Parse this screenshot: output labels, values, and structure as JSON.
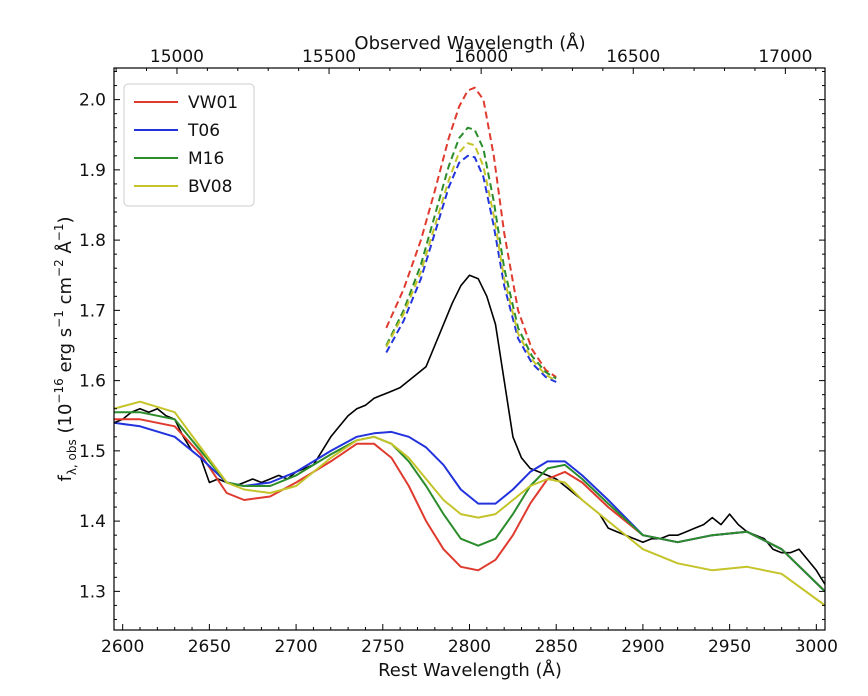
{
  "chart_data": {
    "type": "line",
    "title": "",
    "xlabel": "Rest Wavelength (Å)",
    "ylabel": "f_λ, obs (10^-16 erg s^-1 cm^-2 Å^-1)",
    "ylabel_parts": {
      "f": "f",
      "f_sub": "λ, obs",
      "open": " (10",
      "exp1": "−16",
      "erg": " erg s",
      "exp2": "−1",
      "cm": " cm",
      "exp3": "−2",
      "ang": " Å",
      "exp4": "−1",
      "close": ")"
    },
    "xlim": [
      2595,
      3005
    ],
    "ylim": [
      1.245,
      2.045
    ],
    "x_ticks": [
      2600,
      2650,
      2700,
      2750,
      2800,
      2850,
      2900,
      2950,
      3000
    ],
    "y_ticks": [
      1.3,
      1.4,
      1.5,
      1.6,
      1.7,
      1.8,
      1.9,
      2.0
    ],
    "top_axis": {
      "label": "Observed Wavelength (Å)",
      "ticks": [
        15000,
        15500,
        16000,
        16500,
        17000
      ],
      "redshift_factor": 5.7006
    },
    "legend_position": "upper-left",
    "colors": {
      "VW01": "#e03a2e",
      "T06": "#2233dd",
      "M16": "#2b8c2b",
      "BV08": "#c4c42a",
      "data": "#000000"
    },
    "series": [
      {
        "name": "VW01",
        "style": "solid",
        "x": [
          2595,
          2610,
          2630,
          2645,
          2660,
          2670,
          2685,
          2700,
          2720,
          2735,
          2745,
          2755,
          2765,
          2775,
          2785,
          2795,
          2805,
          2815,
          2825,
          2835,
          2845,
          2855,
          2865,
          2880,
          2900,
          2920,
          2940,
          2960,
          2980,
          3005
        ],
        "y": [
          1.545,
          1.545,
          1.535,
          1.495,
          1.44,
          1.43,
          1.435,
          1.455,
          1.485,
          1.51,
          1.51,
          1.49,
          1.45,
          1.4,
          1.36,
          1.335,
          1.33,
          1.345,
          1.38,
          1.425,
          1.46,
          1.47,
          1.455,
          1.42,
          1.38,
          1.37,
          1.38,
          1.385,
          1.36,
          1.3
        ]
      },
      {
        "name": "T06",
        "style": "solid",
        "x": [
          2595,
          2610,
          2630,
          2645,
          2660,
          2670,
          2685,
          2700,
          2720,
          2735,
          2745,
          2755,
          2765,
          2775,
          2785,
          2795,
          2805,
          2815,
          2825,
          2835,
          2845,
          2855,
          2865,
          2880,
          2900,
          2920,
          2940,
          2960,
          2980,
          3005
        ],
        "y": [
          1.54,
          1.535,
          1.52,
          1.49,
          1.455,
          1.45,
          1.455,
          1.47,
          1.5,
          1.52,
          1.525,
          1.527,
          1.52,
          1.505,
          1.48,
          1.445,
          1.425,
          1.425,
          1.445,
          1.47,
          1.485,
          1.485,
          1.465,
          1.43,
          1.38,
          1.37,
          1.38,
          1.385,
          1.36,
          1.3
        ]
      },
      {
        "name": "M16",
        "style": "solid",
        "x": [
          2595,
          2610,
          2630,
          2645,
          2660,
          2670,
          2685,
          2700,
          2720,
          2735,
          2745,
          2755,
          2765,
          2775,
          2785,
          2795,
          2805,
          2815,
          2825,
          2835,
          2845,
          2855,
          2865,
          2880,
          2900,
          2920,
          2940,
          2960,
          2980,
          3005
        ],
        "y": [
          1.555,
          1.555,
          1.545,
          1.5,
          1.455,
          1.45,
          1.45,
          1.465,
          1.495,
          1.515,
          1.52,
          1.51,
          1.485,
          1.45,
          1.41,
          1.375,
          1.365,
          1.375,
          1.41,
          1.45,
          1.475,
          1.48,
          1.46,
          1.425,
          1.38,
          1.37,
          1.38,
          1.385,
          1.36,
          1.3
        ]
      },
      {
        "name": "BV08",
        "style": "solid",
        "x": [
          2595,
          2610,
          2630,
          2645,
          2660,
          2670,
          2685,
          2700,
          2720,
          2735,
          2745,
          2755,
          2765,
          2775,
          2785,
          2795,
          2805,
          2815,
          2825,
          2835,
          2845,
          2855,
          2865,
          2880,
          2900,
          2920,
          2940,
          2960,
          2980,
          3005
        ],
        "y": [
          1.56,
          1.57,
          1.555,
          1.505,
          1.455,
          1.445,
          1.44,
          1.45,
          1.49,
          1.515,
          1.52,
          1.51,
          1.49,
          1.46,
          1.43,
          1.41,
          1.405,
          1.41,
          1.43,
          1.45,
          1.46,
          1.455,
          1.43,
          1.4,
          1.36,
          1.34,
          1.33,
          1.335,
          1.325,
          1.28
        ]
      },
      {
        "name": "VW01",
        "style": "dashed",
        "x": [
          2752,
          2762,
          2772,
          2780,
          2788,
          2794,
          2799,
          2803,
          2808,
          2814,
          2820,
          2828,
          2836,
          2844,
          2850
        ],
        "y": [
          1.675,
          1.73,
          1.8,
          1.87,
          1.945,
          1.99,
          2.013,
          2.017,
          2.0,
          1.92,
          1.81,
          1.7,
          1.645,
          1.615,
          1.605
        ]
      },
      {
        "name": "T06",
        "style": "dashed",
        "x": [
          2752,
          2762,
          2772,
          2780,
          2788,
          2794,
          2799,
          2803,
          2808,
          2814,
          2820,
          2828,
          2836,
          2844,
          2850
        ],
        "y": [
          1.64,
          1.685,
          1.745,
          1.81,
          1.875,
          1.91,
          1.92,
          1.918,
          1.89,
          1.82,
          1.735,
          1.66,
          1.625,
          1.605,
          1.598
        ]
      },
      {
        "name": "M16",
        "style": "dashed",
        "x": [
          2752,
          2762,
          2772,
          2780,
          2788,
          2794,
          2799,
          2803,
          2808,
          2814,
          2820,
          2828,
          2836,
          2844,
          2850
        ],
        "y": [
          1.65,
          1.7,
          1.765,
          1.835,
          1.905,
          1.945,
          1.96,
          1.957,
          1.93,
          1.855,
          1.76,
          1.675,
          1.635,
          1.612,
          1.603
        ]
      },
      {
        "name": "BV08",
        "style": "dashed",
        "x": [
          2752,
          2762,
          2772,
          2780,
          2788,
          2794,
          2799,
          2803,
          2808,
          2814,
          2820,
          2828,
          2836,
          2844,
          2850
        ],
        "y": [
          1.648,
          1.695,
          1.755,
          1.82,
          1.885,
          1.925,
          1.938,
          1.935,
          1.905,
          1.835,
          1.745,
          1.667,
          1.63,
          1.608,
          1.6
        ]
      },
      {
        "style": "data",
        "x": [
          2595,
          2600,
          2605,
          2610,
          2615,
          2620,
          2625,
          2630,
          2635,
          2640,
          2645,
          2650,
          2655,
          2660,
          2665,
          2670,
          2675,
          2680,
          2685,
          2690,
          2695,
          2700,
          2705,
          2710,
          2715,
          2720,
          2725,
          2730,
          2735,
          2740,
          2745,
          2750,
          2755,
          2760,
          2765,
          2770,
          2775,
          2780,
          2785,
          2790,
          2795,
          2800,
          2805,
          2810,
          2815,
          2820,
          2825,
          2830,
          2835,
          2840,
          2845,
          2850,
          2855,
          2860,
          2865,
          2870,
          2875,
          2880,
          2885,
          2890,
          2895,
          2900,
          2905,
          2910,
          2915,
          2920,
          2925,
          2930,
          2935,
          2940,
          2945,
          2950,
          2955,
          2960,
          2965,
          2970,
          2975,
          2980,
          2985,
          2990,
          2995,
          3000,
          3005
        ],
        "y": [
          1.54,
          1.545,
          1.555,
          1.56,
          1.555,
          1.56,
          1.55,
          1.545,
          1.52,
          1.5,
          1.49,
          1.455,
          1.46,
          1.455,
          1.45,
          1.455,
          1.46,
          1.455,
          1.46,
          1.465,
          1.46,
          1.47,
          1.475,
          1.48,
          1.5,
          1.52,
          1.535,
          1.55,
          1.56,
          1.565,
          1.575,
          1.58,
          1.585,
          1.59,
          1.6,
          1.61,
          1.62,
          1.65,
          1.68,
          1.71,
          1.735,
          1.75,
          1.745,
          1.72,
          1.68,
          1.6,
          1.52,
          1.49,
          1.475,
          1.47,
          1.465,
          1.46,
          1.45,
          1.44,
          1.43,
          1.42,
          1.41,
          1.39,
          1.385,
          1.38,
          1.375,
          1.37,
          1.375,
          1.375,
          1.38,
          1.38,
          1.385,
          1.39,
          1.395,
          1.405,
          1.395,
          1.41,
          1.395,
          1.385,
          1.38,
          1.375,
          1.36,
          1.355,
          1.355,
          1.36,
          1.345,
          1.33,
          1.31
        ]
      }
    ]
  }
}
